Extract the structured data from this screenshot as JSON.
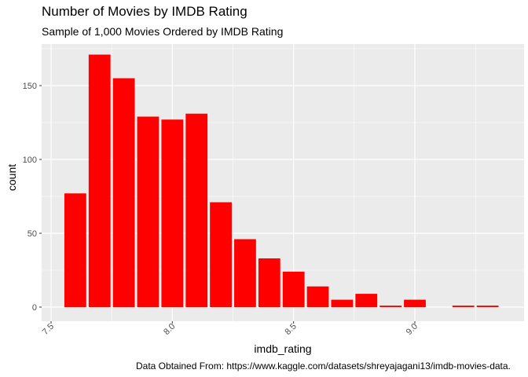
{
  "chart_data": {
    "type": "bar",
    "title": "Number of Movies by IMDB Rating",
    "subtitle": "Sample of 1,000 Movies Ordered by IMDB Rating",
    "caption": "Data Obtained From: https://www.kaggle.com/datasets/shreyajagani13/imdb-movies-data.",
    "xlabel": "imdb_rating",
    "ylabel": "count",
    "x": [
      7.6,
      7.7,
      7.8,
      7.9,
      8.0,
      8.1,
      8.2,
      8.3,
      8.4,
      8.5,
      8.6,
      8.7,
      8.8,
      8.9,
      9.0,
      9.1,
      9.2,
      9.3
    ],
    "values": [
      77,
      171,
      155,
      129,
      127,
      131,
      71,
      46,
      33,
      24,
      14,
      5,
      9,
      1,
      5,
      0,
      1,
      1
    ],
    "bar_width": 0.09,
    "xlim": [
      7.5,
      9.35
    ],
    "ylim": [
      0,
      175
    ],
    "x_ticks": [
      7.5,
      8.0,
      8.5,
      9.0
    ],
    "x_tick_labels": [
      "7.5",
      "8.0",
      "8.5",
      "9.0"
    ],
    "y_ticks": [
      0,
      50,
      100,
      150
    ],
    "y_tick_labels": [
      "0",
      "50",
      "100",
      "150"
    ],
    "bar_color": "#ff0000",
    "panel_color": "#ebebeb",
    "grid_color": "#ffffff",
    "grid": true,
    "legend": "none"
  }
}
